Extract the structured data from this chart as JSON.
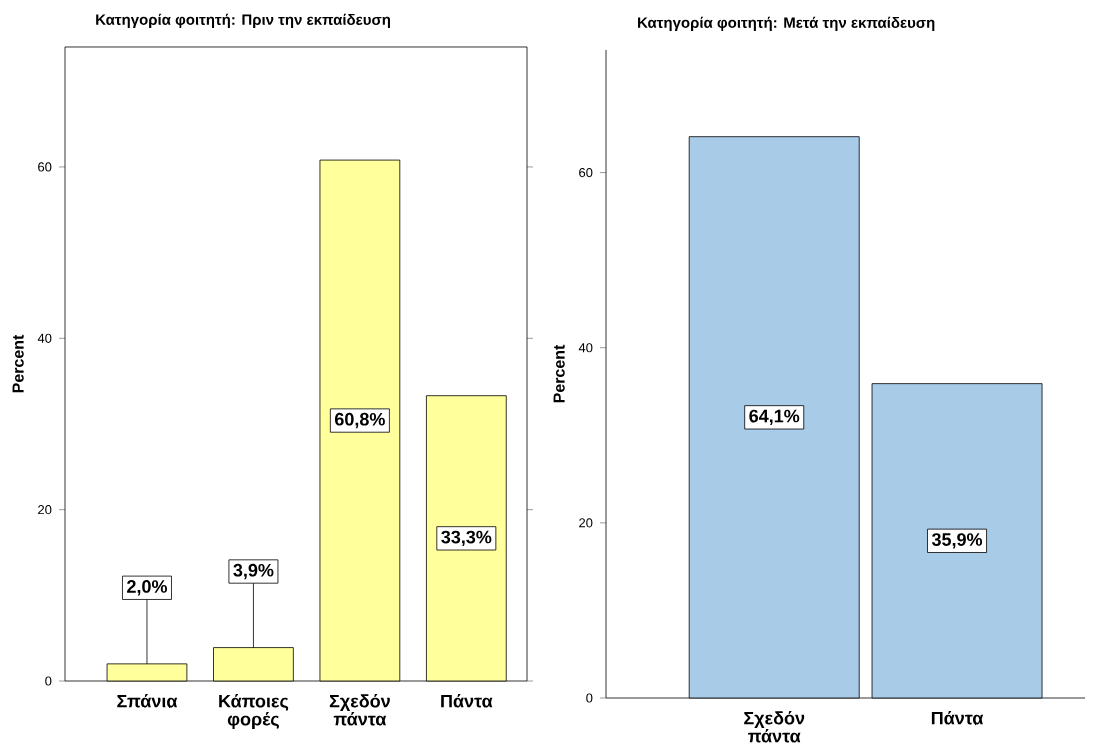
{
  "chart_data": [
    {
      "type": "bar",
      "title": "Κατηγορία φοιτητή: Πριν την εκπαίδευση",
      "ylabel": "Percent",
      "categories": [
        "Σπάνια",
        "Κάποιες φορές",
        "Σχεδόν πάντα",
        "Πάντα"
      ],
      "values": [
        2.0,
        3.9,
        60.8,
        33.3
      ],
      "value_labels": [
        "2,0%",
        "3,9%",
        "60,8%",
        "33,3%"
      ],
      "color": "#ffff9c",
      "ylim": [
        0,
        74
      ],
      "yticks": [
        0,
        20,
        40,
        60
      ]
    },
    {
      "type": "bar",
      "title": "Κατηγορία φοιτητή: Μετά την εκπαίδευση",
      "ylabel": "Percent",
      "categories": [
        "Σχεδόν πάντα",
        "Πάντα"
      ],
      "values": [
        64.1,
        35.9
      ],
      "value_labels": [
        "64,1%",
        "35,9%"
      ],
      "color": "#a8cbe8",
      "ylim": [
        0,
        74
      ],
      "yticks": [
        0,
        20,
        40,
        60
      ]
    }
  ]
}
